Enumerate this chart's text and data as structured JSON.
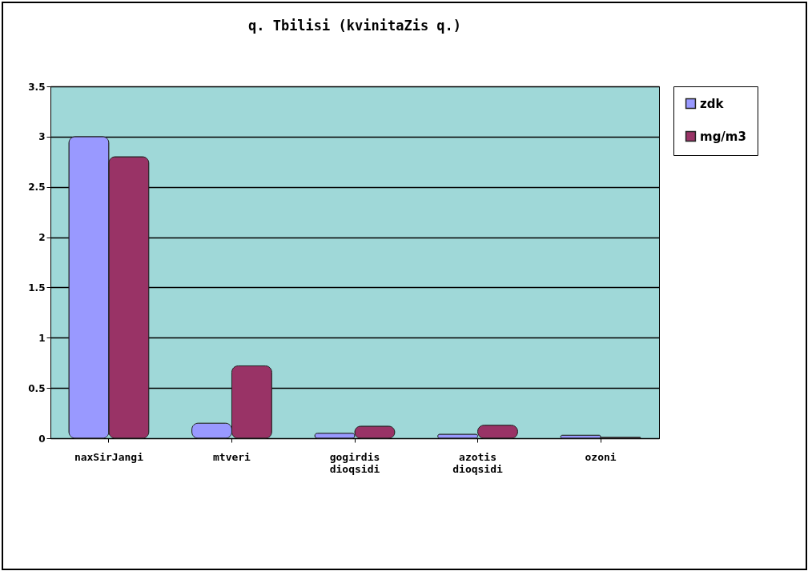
{
  "chart_data": {
    "type": "bar",
    "title": "q. Tbilisi (kvinitaZis q.)",
    "categories": [
      "naxSirJangi",
      "mtveri",
      "gogirdis dioqsidi",
      "azotis dioqsidi",
      "ozoni"
    ],
    "series": [
      {
        "name": "zdk",
        "color": "#9999ff",
        "values": [
          3.0,
          0.15,
          0.05,
          0.04,
          0.03
        ]
      },
      {
        "name": "mg/m3",
        "color": "#993366",
        "values": [
          2.8,
          0.72,
          0.12,
          0.13,
          0.01
        ]
      }
    ],
    "ylim": [
      0,
      3.5
    ],
    "yticks": [
      0,
      0.5,
      1,
      1.5,
      2,
      2.5,
      3,
      3.5
    ],
    "grid": "y",
    "legend": "right"
  }
}
